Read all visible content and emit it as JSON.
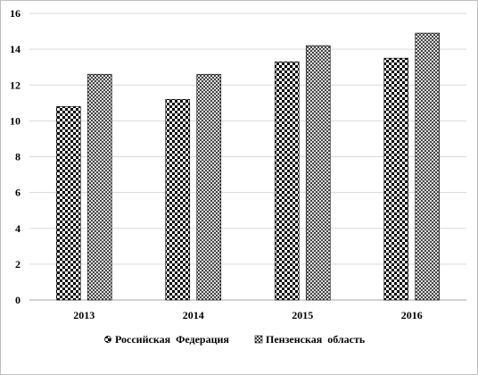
{
  "chart_data": {
    "type": "bar",
    "categories": [
      "2013",
      "2014",
      "2015",
      "2016"
    ],
    "series": [
      {
        "name": "Российская  Федерация",
        "values": [
          10.8,
          11.2,
          13.3,
          13.5
        ],
        "pattern": "checker"
      },
      {
        "name": "Пензенская  область",
        "values": [
          12.6,
          12.6,
          14.2,
          14.9
        ],
        "pattern": "crosshatch"
      }
    ],
    "title": "",
    "xlabel": "",
    "ylabel": "",
    "ylim": [
      0,
      16
    ],
    "yticks": [
      "0",
      "2",
      "4",
      "6",
      "8",
      "10",
      "12",
      "14",
      "16"
    ],
    "grid": true,
    "legend": "bottom",
    "colors": {
      "grid": "#d9d9d9",
      "bar_stroke": "#000000",
      "checker_dark": "#000000",
      "checker_light": "#ffffff",
      "hatch": "#000000"
    }
  }
}
